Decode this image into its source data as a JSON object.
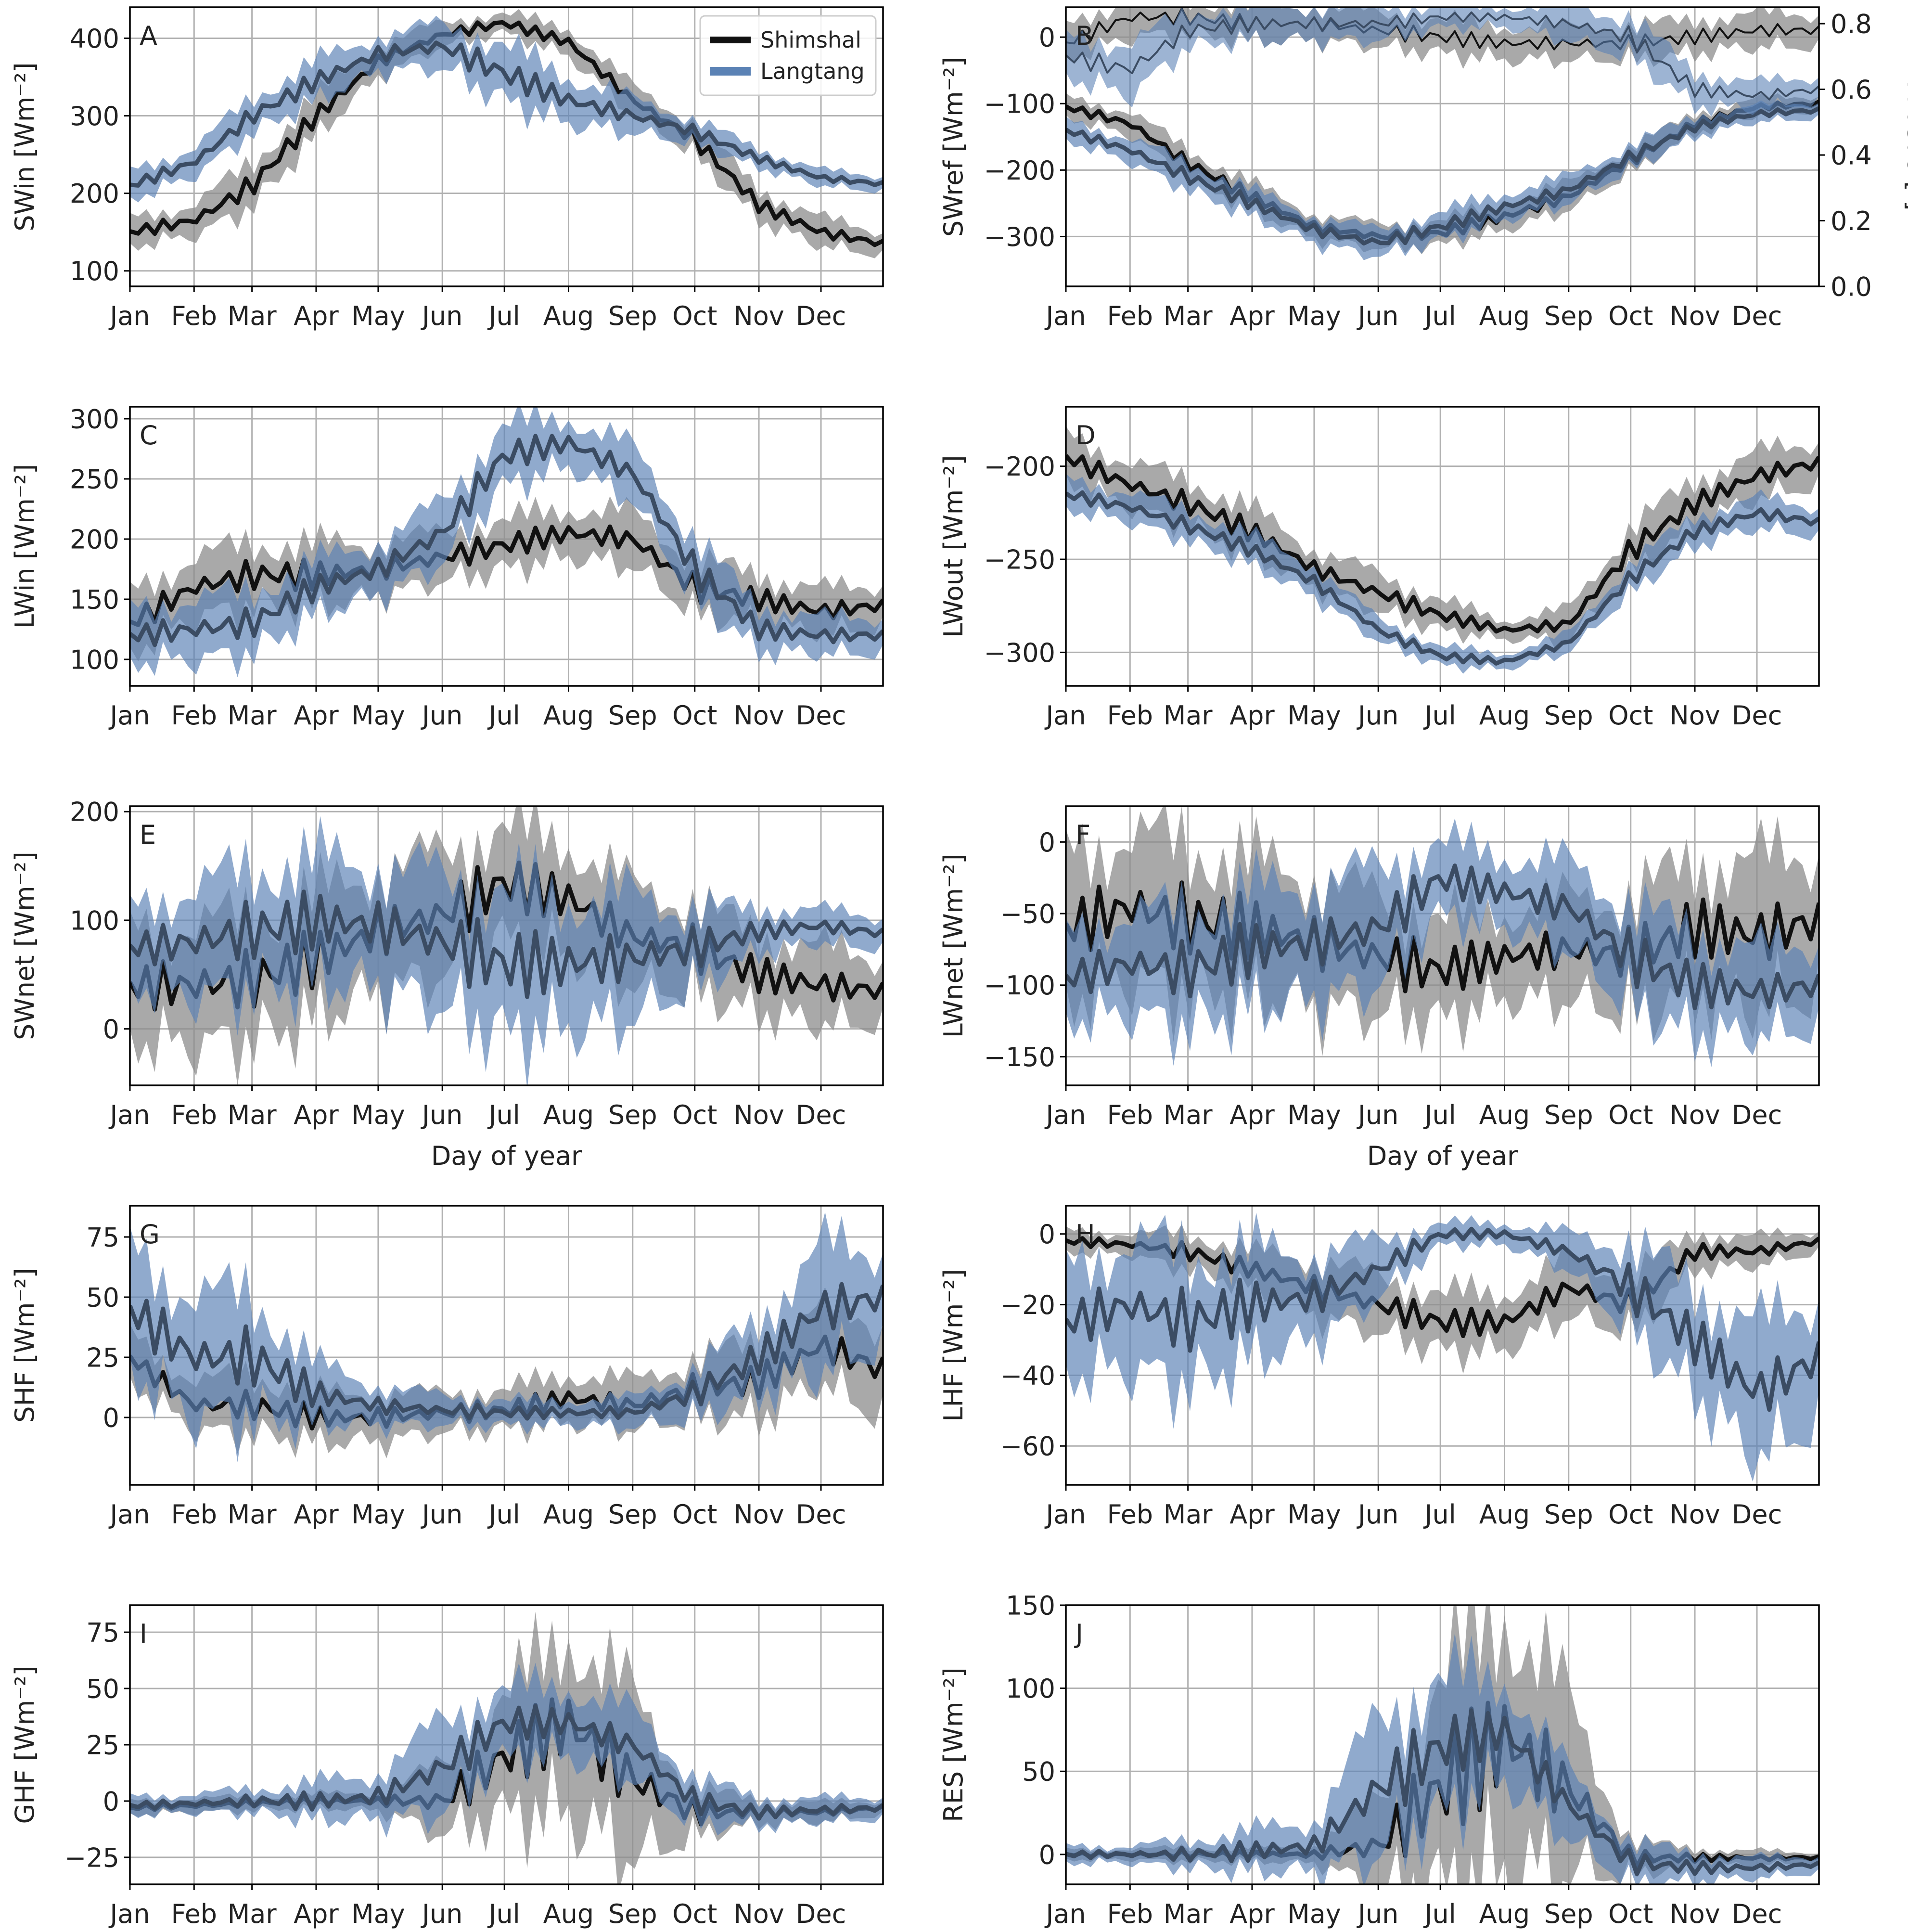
{
  "figure": {
    "months": [
      "Jan",
      "Feb",
      "Mar",
      "Apr",
      "May",
      "Jun",
      "Jul",
      "Aug",
      "Sep",
      "Oct",
      "Nov",
      "Dec"
    ],
    "x_label": "Day of year",
    "legend": [
      {
        "name": "Shimshal",
        "color": "#000000"
      },
      {
        "name": "Langtang",
        "color": "#4c72a8"
      }
    ],
    "colors": {
      "shimshal_line": "#111111",
      "shimshal_band": "#8c8c8c",
      "langtang_line": "#3b4c63",
      "langtang_band": "#5b82b5"
    }
  },
  "chart_data": [
    {
      "panel": "A",
      "type": "line",
      "ylabel": "SWin [Wm⁻²]",
      "ylim": [
        80,
        440
      ],
      "yticks": [
        100,
        200,
        300,
        400
      ],
      "xlabel": "",
      "legend": "top-right",
      "x": [
        1,
        32,
        60,
        91,
        121,
        152,
        182,
        213,
        244,
        274,
        305,
        335,
        365
      ],
      "series": [
        {
          "name": "Shimshal",
          "values": [
            150,
            165,
            210,
            300,
            370,
            405,
            420,
            395,
            320,
            270,
            185,
            150,
            135
          ],
          "spread": [
            18,
            20,
            28,
            25,
            20,
            15,
            12,
            18,
            18,
            20,
            20,
            18,
            15
          ]
        },
        {
          "name": "Langtang",
          "values": [
            210,
            240,
            300,
            345,
            380,
            390,
            355,
            320,
            300,
            280,
            245,
            220,
            212
          ],
          "spread": [
            18,
            18,
            22,
            25,
            22,
            28,
            35,
            30,
            22,
            15,
            12,
            10,
            10
          ]
        }
      ]
    },
    {
      "panel": "B",
      "type": "line",
      "ylabel": "SWref [Wm⁻²]",
      "ylim": [
        -375,
        45
      ],
      "yticks": [
        -300,
        -200,
        -100,
        0
      ],
      "xlabel": "",
      "secondary_axis": {
        "label": "Albedo [-]",
        "ylim": [
          0.0,
          0.85
        ],
        "ticks": [
          0.0,
          0.2,
          0.4,
          0.6,
          0.8
        ]
      },
      "x": [
        1,
        32,
        60,
        91,
        121,
        152,
        182,
        213,
        244,
        274,
        305,
        335,
        365
      ],
      "series": [
        {
          "name": "Shimshal",
          "values": [
            -105,
            -130,
            -190,
            -240,
            -285,
            -300,
            -295,
            -270,
            -240,
            -185,
            -130,
            -105,
            -100
          ],
          "spread": [
            15,
            18,
            20,
            20,
            18,
            18,
            18,
            20,
            20,
            18,
            15,
            12,
            12
          ]
        },
        {
          "name": "Langtang",
          "values": [
            -140,
            -170,
            -210,
            -250,
            -290,
            -310,
            -285,
            -255,
            -230,
            -180,
            -135,
            -115,
            -110
          ],
          "spread": [
            15,
            18,
            20,
            20,
            20,
            20,
            20,
            20,
            20,
            18,
            15,
            12,
            12
          ]
        }
      ],
      "albedo_series": [
        {
          "name": "Shimshal",
          "values": [
            0.74,
            0.82,
            0.82,
            0.8,
            0.8,
            0.78,
            0.76,
            0.74,
            0.74,
            0.74,
            0.76,
            0.78,
            0.78
          ],
          "spread": [
            0.05,
            0.06,
            0.05,
            0.05,
            0.05,
            0.05,
            0.05,
            0.05,
            0.05,
            0.05,
            0.05,
            0.05,
            0.05
          ]
        },
        {
          "name": "Langtang",
          "values": [
            0.7,
            0.66,
            0.78,
            0.8,
            0.8,
            0.8,
            0.82,
            0.82,
            0.8,
            0.76,
            0.6,
            0.58,
            0.6
          ],
          "spread": [
            0.06,
            0.08,
            0.05,
            0.05,
            0.05,
            0.05,
            0.03,
            0.03,
            0.05,
            0.06,
            0.05,
            0.04,
            0.04
          ]
        }
      ]
    },
    {
      "panel": "C",
      "type": "line",
      "ylabel": "LWin [Wm⁻²]",
      "ylim": [
        78,
        310
      ],
      "yticks": [
        100,
        150,
        200,
        250,
        300
      ],
      "xlabel": "",
      "x": [
        1,
        32,
        60,
        91,
        121,
        152,
        182,
        213,
        244,
        274,
        305,
        335,
        365
      ],
      "series": [
        {
          "name": "Shimshal",
          "values": [
            130,
            160,
            170,
            170,
            175,
            185,
            195,
            205,
            200,
            160,
            150,
            140,
            145
          ],
          "spread": [
            25,
            25,
            25,
            25,
            22,
            20,
            20,
            20,
            22,
            22,
            20,
            18,
            18
          ]
        },
        {
          "name": "Langtang",
          "values": [
            120,
            125,
            130,
            160,
            175,
            205,
            270,
            280,
            255,
            175,
            125,
            120,
            120
          ],
          "spread": [
            22,
            25,
            25,
            22,
            22,
            25,
            25,
            20,
            22,
            25,
            18,
            15,
            15
          ]
        }
      ]
    },
    {
      "panel": "D",
      "type": "line",
      "ylabel": "LWout [Wm⁻²]",
      "ylim": [
        -318,
        -168
      ],
      "yticks": [
        -300,
        -250,
        -200
      ],
      "xlabel": "",
      "x": [
        1,
        32,
        60,
        91,
        121,
        152,
        182,
        213,
        244,
        274,
        305,
        335,
        365
      ],
      "series": [
        {
          "name": "Shimshal",
          "values": [
            -195,
            -210,
            -220,
            -235,
            -255,
            -268,
            -280,
            -288,
            -285,
            -245,
            -220,
            -205,
            -198
          ],
          "spread": [
            12,
            12,
            12,
            12,
            10,
            10,
            8,
            5,
            8,
            12,
            12,
            12,
            12
          ]
        },
        {
          "name": "Langtang",
          "values": [
            -215,
            -222,
            -232,
            -245,
            -262,
            -288,
            -302,
            -305,
            -295,
            -260,
            -235,
            -225,
            -230
          ],
          "spread": [
            8,
            8,
            8,
            8,
            8,
            6,
            5,
            4,
            5,
            8,
            8,
            8,
            8
          ]
        }
      ]
    },
    {
      "panel": "E",
      "type": "line",
      "ylabel": "SWnet [Wm⁻²]",
      "xlabel": "Day of year",
      "ylim": [
        -52,
        205
      ],
      "yticks": [
        0,
        100,
        200
      ],
      "x": [
        1,
        32,
        60,
        91,
        121,
        152,
        182,
        213,
        244,
        274,
        305,
        335,
        365
      ],
      "series": [
        {
          "name": "Shimshal",
          "values": [
            40,
            40,
            45,
            65,
            90,
            105,
            135,
            120,
            85,
            75,
            50,
            40,
            35
          ],
          "spread": [
            50,
            55,
            55,
            55,
            55,
            55,
            50,
            50,
            45,
            40,
            35,
            35,
            30
          ]
        },
        {
          "name": "Langtang",
          "values": [
            75,
            80,
            90,
            100,
            95,
            80,
            60,
            60,
            65,
            75,
            90,
            95,
            88
          ],
          "spread": [
            35,
            50,
            55,
            55,
            55,
            60,
            65,
            60,
            55,
            35,
            20,
            15,
            15
          ]
        }
      ]
    },
    {
      "panel": "F",
      "type": "line",
      "ylabel": "LWnet [Wm⁻²]",
      "xlabel": "Day of year",
      "ylim": [
        -170,
        25
      ],
      "yticks": [
        -150,
        -100,
        -50,
        0
      ],
      "x": [
        1,
        32,
        60,
        91,
        121,
        152,
        182,
        213,
        244,
        274,
        305,
        335,
        365
      ],
      "series": [
        {
          "name": "Shimshal",
          "values": [
            -60,
            -45,
            -55,
            -60,
            -70,
            -80,
            -90,
            -80,
            -75,
            -80,
            -60,
            -65,
            -55
          ],
          "spread": [
            50,
            50,
            50,
            45,
            45,
            40,
            35,
            30,
            35,
            40,
            45,
            50,
            50
          ]
        },
        {
          "name": "Langtang",
          "values": [
            -95,
            -85,
            -90,
            -75,
            -70,
            -60,
            -25,
            -35,
            -45,
            -80,
            -100,
            -105,
            -100
          ],
          "spread": [
            30,
            35,
            40,
            40,
            40,
            40,
            25,
            25,
            30,
            35,
            35,
            30,
            30
          ]
        }
      ]
    },
    {
      "panel": "G",
      "type": "line",
      "ylabel": "SHF [Wm⁻²]",
      "xlabel": "",
      "ylim": [
        -28,
        88
      ],
      "yticks": [
        0,
        25,
        50,
        75
      ],
      "x": [
        1,
        32,
        60,
        91,
        121,
        152,
        182,
        213,
        244,
        274,
        305,
        335,
        365
      ],
      "series": [
        {
          "name": "Shimshal",
          "values": [
            25,
            5,
            5,
            0,
            0,
            2,
            3,
            8,
            5,
            12,
            15,
            30,
            20
          ],
          "spread": [
            10,
            10,
            12,
            10,
            10,
            8,
            8,
            10,
            10,
            12,
            15,
            15,
            20
          ]
        },
        {
          "name": "Langtang",
          "values": [
            45,
            25,
            25,
            10,
            5,
            3,
            2,
            2,
            2,
            10,
            25,
            45,
            50
          ],
          "spread": [
            25,
            25,
            25,
            12,
            8,
            6,
            5,
            5,
            6,
            10,
            15,
            25,
            20
          ]
        }
      ]
    },
    {
      "panel": "H",
      "type": "line",
      "ylabel": "LHF [Wm⁻²]",
      "xlabel": "",
      "ylim": [
        -71,
        8
      ],
      "yticks": [
        -60,
        -40,
        -20,
        0
      ],
      "x": [
        1,
        32,
        60,
        91,
        121,
        152,
        182,
        213,
        244,
        274,
        305,
        335,
        365
      ],
      "series": [
        {
          "name": "Shimshal",
          "values": [
            -2,
            -3,
            -5,
            -10,
            -15,
            -20,
            -25,
            -25,
            -15,
            -20,
            -5,
            -5,
            -2
          ],
          "spread": [
            3,
            3,
            5,
            5,
            8,
            8,
            8,
            8,
            8,
            8,
            5,
            4,
            3
          ]
        },
        {
          "name": "Langtang",
          "values": [
            -25,
            -20,
            -25,
            -20,
            -18,
            -10,
            0,
            0,
            -5,
            -15,
            -30,
            -45,
            -35
          ],
          "spread": [
            15,
            18,
            18,
            15,
            12,
            8,
            3,
            3,
            5,
            12,
            15,
            18,
            18
          ]
        }
      ]
    },
    {
      "panel": "I",
      "type": "line",
      "ylabel": "GHF [Wm⁻²]",
      "xlabel": "",
      "ylim": [
        -37,
        87
      ],
      "yticks": [
        -25,
        0,
        25,
        50,
        75
      ],
      "x": [
        1,
        32,
        60,
        91,
        121,
        152,
        182,
        213,
        244,
        274,
        305,
        335,
        365
      ],
      "series": [
        {
          "name": "Shimshal",
          "values": [
            -3,
            -2,
            -1,
            0,
            0,
            0,
            20,
            35,
            10,
            -5,
            -5,
            -5,
            -3
          ],
          "spread": [
            3,
            3,
            3,
            3,
            4,
            15,
            25,
            40,
            35,
            10,
            5,
            4,
            3
          ]
        },
        {
          "name": "Langtang",
          "values": [
            -2,
            -1,
            0,
            0,
            2,
            15,
            35,
            35,
            25,
            0,
            -5,
            -4,
            -3
          ],
          "spread": [
            4,
            4,
            5,
            8,
            10,
            20,
            15,
            15,
            15,
            10,
            6,
            5,
            5
          ]
        }
      ]
    },
    {
      "panel": "J",
      "type": "line",
      "ylabel": "RES [Wm⁻²]",
      "xlabel": "",
      "ylim": [
        -18,
        150
      ],
      "yticks": [
        0,
        50,
        100,
        150
      ],
      "x": [
        1,
        32,
        60,
        91,
        121,
        152,
        182,
        213,
        244,
        274,
        305,
        335,
        365
      ],
      "series": [
        {
          "name": "Shimshal",
          "values": [
            0,
            0,
            0,
            0,
            0,
            5,
            40,
            70,
            40,
            -2,
            -2,
            -2,
            -2
          ],
          "spread": [
            3,
            3,
            4,
            4,
            5,
            25,
            60,
            80,
            50,
            10,
            5,
            4,
            3
          ]
        },
        {
          "name": "Langtang",
          "values": [
            0,
            0,
            0,
            2,
            5,
            40,
            65,
            75,
            30,
            -5,
            -8,
            -8,
            -6
          ],
          "spread": [
            5,
            5,
            8,
            12,
            15,
            40,
            40,
            30,
            20,
            12,
            8,
            6,
            5
          ]
        }
      ]
    }
  ]
}
